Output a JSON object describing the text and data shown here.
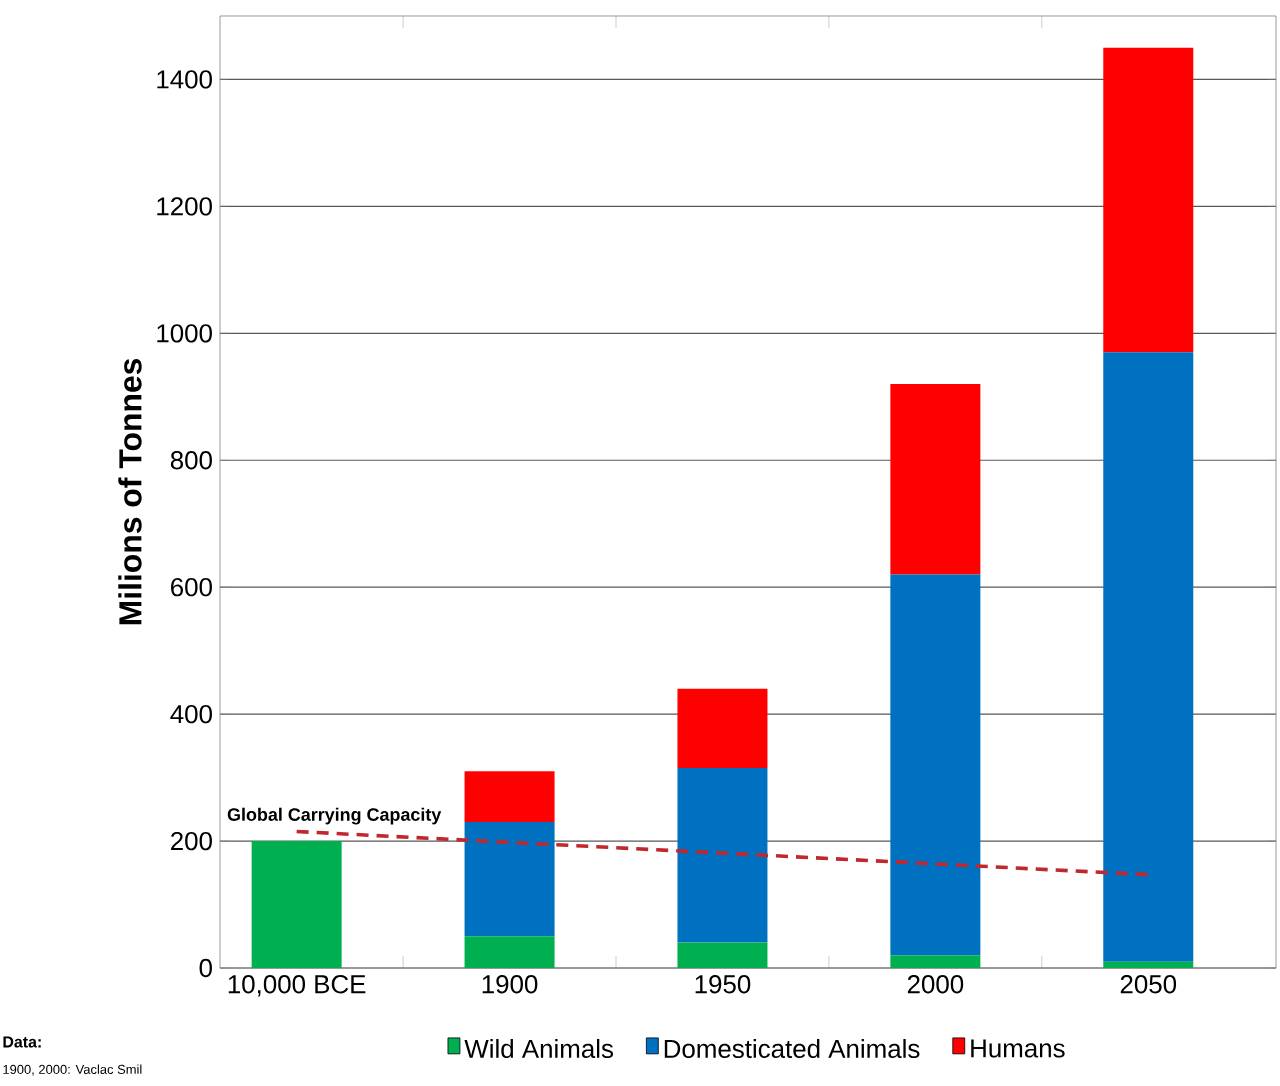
{
  "chart_data": {
    "type": "bar",
    "stacked": true,
    "ylabel": "Milions of Tonnes",
    "categories": [
      "10,000 BCE",
      "1900",
      "1950",
      "2000",
      "2050"
    ],
    "series": [
      {
        "name": "Wild Animals",
        "color": "#00b050",
        "values": [
          200,
          50,
          40,
          20,
          10
        ]
      },
      {
        "name": "Domesticated Animals",
        "color": "#0070c0",
        "values": [
          0,
          180,
          275,
          600,
          960
        ]
      },
      {
        "name": "Humans",
        "color": "#ff0000",
        "values": [
          0,
          80,
          125,
          300,
          480
        ]
      },
      {
        "name": "Global Carrying Capacity",
        "type": "line",
        "color": "#c0282d",
        "line_style": "dashed",
        "values": [
          215,
          198,
          181,
          164,
          147
        ]
      }
    ],
    "ylim": [
      0,
      1500
    ],
    "yticks": [
      0,
      200,
      400,
      600,
      800,
      1000,
      1200,
      1400
    ],
    "grid": "y",
    "legend": "bottom",
    "annotations": [
      "Data:",
      "1900, 2000: Vaclac Smil"
    ]
  }
}
